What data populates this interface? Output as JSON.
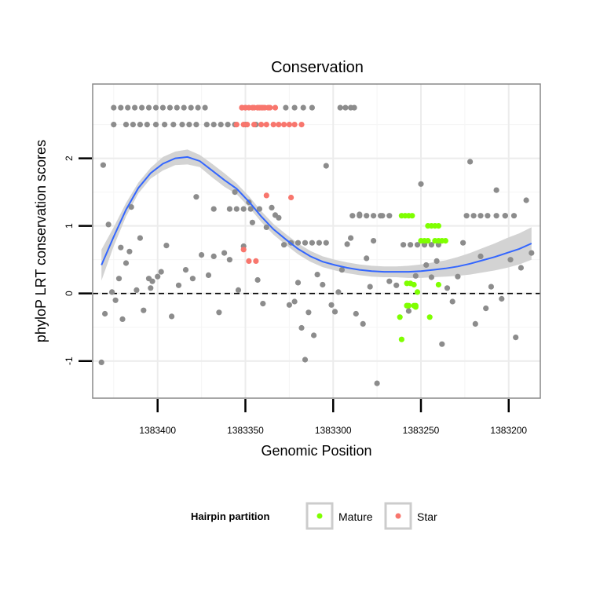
{
  "chart_data": {
    "type": "scatter",
    "title": "Conservation",
    "xlabel": "Genomic Position",
    "ylabel": "phyloP LRT conservation scores",
    "x_reversed": true,
    "xlim": [
      1383437,
      1383182
    ],
    "ylim": [
      -1.55,
      3.1
    ],
    "x_ticks": [
      1383400,
      1383350,
      1383300,
      1383250,
      1383200
    ],
    "x_tick_labels": [
      "1383400",
      "1383350",
      "1383300",
      "1383250",
      "1383200"
    ],
    "y_ticks": [
      -1,
      0,
      1,
      2
    ],
    "y_tick_labels": [
      "-1",
      "0",
      "1",
      "2"
    ],
    "reference_line": {
      "y": 0,
      "style": "dashed"
    },
    "grid": true,
    "legend": {
      "title": "Hairpin partition",
      "position": "bottom",
      "entries": [
        {
          "label": "Mature",
          "color": "#7fff00"
        },
        {
          "label": "Star",
          "color": "#f8766d"
        }
      ]
    },
    "colors": {
      "other": "#8c8c8c",
      "mature": "#7fff00",
      "star": "#f8766d",
      "smooth": "#3366ff",
      "band": "#d3d3d3"
    },
    "series": [
      {
        "name": "Other",
        "x": [
          1383432,
          1383431,
          1383430,
          1383428,
          1383426,
          1383424,
          1383422,
          1383421,
          1383420,
          1383418,
          1383416,
          1383415,
          1383412,
          1383410,
          1383408,
          1383405,
          1383404,
          1383403,
          1383400,
          1383398,
          1383395,
          1383392,
          1383388,
          1383384,
          1383380,
          1383378,
          1383375,
          1383371,
          1383368,
          1383365,
          1383362,
          1383359,
          1383356,
          1383354,
          1383351,
          1383348,
          1383346,
          1383343,
          1383340,
          1383338,
          1383335,
          1383333,
          1383331,
          1383328,
          1383325,
          1383322,
          1383320,
          1383318,
          1383316,
          1383314,
          1383311,
          1383309,
          1383306,
          1383304,
          1383301,
          1383299,
          1383297,
          1383295,
          1383292,
          1383290,
          1383287,
          1383285,
          1383283,
          1383281,
          1383279,
          1383277,
          1383275,
          1383272,
          1383268,
          1383264,
          1383257,
          1383253,
          1383250,
          1383247,
          1383244,
          1383241,
          1383238,
          1383235,
          1383232,
          1383229,
          1383226,
          1383222,
          1383219,
          1383216,
          1383213,
          1383210,
          1383207,
          1383204,
          1383202,
          1383199,
          1383196,
          1383193,
          1383190,
          1383187,
          1383425,
          1383418,
          1383414,
          1383410,
          1383406,
          1383401,
          1383396,
          1383391,
          1383386,
          1383382,
          1383378,
          1383372,
          1383368,
          1383364,
          1383360,
          1383356,
          1383350,
          1383344,
          1383327,
          1383322,
          1383317,
          1383312,
          1383296,
          1383293,
          1383290,
          1383288,
          1383425,
          1383421,
          1383417,
          1383413,
          1383409,
          1383405,
          1383401,
          1383397,
          1383393,
          1383389,
          1383385,
          1383381,
          1383377,
          1383373,
          1383368,
          1383359,
          1383355,
          1383351,
          1383347,
          1383342,
          1383324,
          1383320,
          1383316,
          1383312,
          1383308,
          1383304,
          1383289,
          1383285,
          1383281,
          1383277,
          1383273,
          1383268,
          1383260,
          1383256,
          1383252,
          1383248,
          1383244,
          1383240,
          1383224,
          1383220,
          1383216,
          1383212,
          1383207,
          1383202,
          1383197
        ],
        "y": [
          -1.02,
          1.9,
          -0.3,
          1.02,
          0.02,
          -0.1,
          0.22,
          0.68,
          -0.38,
          0.45,
          0.62,
          1.28,
          0.05,
          0.82,
          -0.25,
          0.22,
          0.08,
          0.18,
          0.25,
          0.32,
          0.71,
          -0.34,
          0.12,
          0.35,
          0.22,
          1.43,
          0.57,
          0.27,
          0.55,
          -0.28,
          0.6,
          0.5,
          1.5,
          0.05,
          0.7,
          1.35,
          1.05,
          0.2,
          -0.15,
          0.98,
          1.27,
          1.16,
          1.12,
          0.72,
          -0.17,
          -0.12,
          0.16,
          -0.51,
          -0.98,
          -0.28,
          -0.62,
          0.28,
          0.13,
          1.89,
          -0.17,
          -0.27,
          0.02,
          0.35,
          0.73,
          0.82,
          -0.3,
          1.17,
          -0.45,
          0.52,
          0.1,
          0.78,
          -1.33,
          1.15,
          0.18,
          0.12,
          -0.26,
          0.26,
          1.62,
          0.42,
          0.24,
          0.48,
          -0.75,
          0.08,
          -0.12,
          0.25,
          0.75,
          1.95,
          -0.45,
          0.55,
          -0.22,
          0.1,
          1.53,
          -0.08,
          1.15,
          0.5,
          -0.65,
          0.38,
          1.38,
          0.6,
          2.5,
          2.5,
          2.5,
          2.5,
          2.5,
          2.5,
          2.5,
          2.5,
          2.5,
          2.5,
          2.5,
          2.5,
          2.5,
          2.5,
          2.5,
          2.5,
          2.5,
          2.5,
          2.75,
          2.75,
          2.75,
          2.75,
          2.75,
          2.75,
          2.75,
          2.75,
          2.75,
          2.75,
          2.75,
          2.75,
          2.75,
          2.75,
          2.75,
          2.75,
          2.75,
          2.75,
          2.75,
          2.75,
          2.75,
          2.75,
          1.25,
          1.25,
          1.25,
          1.25,
          1.25,
          1.25,
          0.75,
          0.75,
          0.75,
          0.75,
          0.75,
          0.75,
          1.15,
          1.15,
          1.15,
          1.15,
          1.15,
          1.15,
          0.72,
          0.72,
          0.72,
          0.72,
          0.72,
          0.72,
          1.15,
          1.15,
          1.15,
          1.15,
          1.15,
          1.15,
          1.15
        ]
      },
      {
        "name": "Mature",
        "x": [
          1383261,
          1383259,
          1383257,
          1383255,
          1383258,
          1383256,
          1383254,
          1383240,
          1383252,
          1383253,
          1383262,
          1383261,
          1383258,
          1383257,
          1383254,
          1383253,
          1383258,
          1383246,
          1383244,
          1383242,
          1383240,
          1383250,
          1383248,
          1383246,
          1383242,
          1383240,
          1383238,
          1383236,
          1383245
        ],
        "y": [
          1.15,
          1.15,
          1.15,
          1.15,
          0.15,
          0.15,
          0.13,
          0.13,
          0.02,
          -0.2,
          -0.35,
          -0.68,
          -0.18,
          -0.18,
          -0.18,
          -0.18,
          -0.18,
          1.0,
          1.0,
          1.0,
          1.0,
          0.78,
          0.78,
          0.78,
          0.78,
          0.78,
          0.78,
          0.78,
          -0.35
        ],
        "x_note": "approximate",
        "y_note": "approximate"
      },
      {
        "name": "Star",
        "x": [
          1383352,
          1383350,
          1383348,
          1383346,
          1383343,
          1383341,
          1383339,
          1383337,
          1383355,
          1383351,
          1383349,
          1383345,
          1383341,
          1383338,
          1383334,
          1383331,
          1383328,
          1383325,
          1383322,
          1383318,
          1383342,
          1383340,
          1383336,
          1383333,
          1383345,
          1383343,
          1383352,
          1383350,
          1383351,
          1383348,
          1383344,
          1383338,
          1383324
        ],
        "y": [
          2.75,
          2.75,
          2.75,
          2.75,
          2.75,
          2.75,
          2.75,
          2.75,
          2.5,
          2.5,
          2.5,
          2.5,
          2.5,
          2.5,
          2.5,
          2.5,
          2.5,
          2.5,
          2.5,
          2.5,
          2.75,
          2.75,
          2.75,
          2.75,
          2.75,
          2.75,
          2.75,
          2.75,
          0.65,
          0.48,
          0.48,
          1.45,
          1.42
        ]
      }
    ],
    "smooth_curve": {
      "x": [
        1383432,
        1383425,
        1383418,
        1383411,
        1383404,
        1383397,
        1383390,
        1383383,
        1383376,
        1383369,
        1383362,
        1383355,
        1383348,
        1383341,
        1383334,
        1383327,
        1383320,
        1383313,
        1383306,
        1383299,
        1383292,
        1383285,
        1383278,
        1383271,
        1383264,
        1383257,
        1383250,
        1383243,
        1383236,
        1383229,
        1383222,
        1383215,
        1383208,
        1383201,
        1383194,
        1383187
      ],
      "y": [
        0.42,
        0.84,
        1.24,
        1.56,
        1.78,
        1.92,
        2.0,
        2.02,
        1.96,
        1.82,
        1.68,
        1.55,
        1.36,
        1.14,
        0.95,
        0.8,
        0.66,
        0.55,
        0.47,
        0.42,
        0.38,
        0.35,
        0.33,
        0.32,
        0.32,
        0.32,
        0.33,
        0.35,
        0.37,
        0.4,
        0.44,
        0.49,
        0.54,
        0.6,
        0.66,
        0.74
      ],
      "band_upper": [
        0.65,
        0.98,
        1.34,
        1.64,
        1.86,
        2.02,
        2.1,
        2.13,
        2.05,
        1.92,
        1.78,
        1.63,
        1.44,
        1.22,
        1.03,
        0.88,
        0.74,
        0.63,
        0.55,
        0.5,
        0.46,
        0.43,
        0.41,
        0.4,
        0.4,
        0.41,
        0.43,
        0.46,
        0.49,
        0.54,
        0.6,
        0.67,
        0.74,
        0.82,
        0.89,
        0.98
      ],
      "band_lower": [
        0.19,
        0.7,
        1.14,
        1.48,
        1.7,
        1.82,
        1.9,
        1.91,
        1.87,
        1.72,
        1.58,
        1.47,
        1.28,
        1.06,
        0.87,
        0.72,
        0.58,
        0.47,
        0.39,
        0.34,
        0.3,
        0.27,
        0.25,
        0.24,
        0.24,
        0.23,
        0.23,
        0.24,
        0.25,
        0.26,
        0.28,
        0.31,
        0.34,
        0.38,
        0.43,
        0.5
      ]
    }
  }
}
